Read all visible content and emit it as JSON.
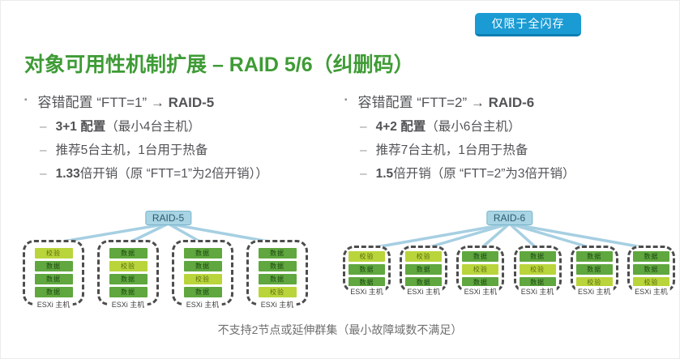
{
  "badge": {
    "label": "仅限于全闪存"
  },
  "title": "对象可用性机制扩展 – RAID 5/6（纠删码）",
  "bullets": {
    "bullet_char": "▪",
    "dash_char": "–",
    "columns": [
      {
        "heading": {
          "pre": "容错配置 “FTT=1” → ",
          "raid": "RAID-5"
        },
        "items": [
          {
            "bold": "3+1 配置",
            "rest": "（最小4台主机）"
          },
          {
            "bold": "",
            "rest": "推荐5台主机，1台用于热备"
          },
          {
            "bold": "1.33",
            "rest": "倍开销（原 “FTT=1”为2倍开销））"
          }
        ]
      },
      {
        "heading": {
          "pre": "容错配置 “FTT=2” → ",
          "raid": "RAID-6"
        },
        "items": [
          {
            "bold": "4+2 配置",
            "rest": "（最小6台主机）"
          },
          {
            "bold": "",
            "rest": "推荐7台主机，1台用于热备"
          },
          {
            "bold": "1.5",
            "rest": "倍开销（原 “FTT=2”为3倍开销）"
          }
        ]
      }
    ]
  },
  "diagrams": [
    {
      "label": "RAID-5",
      "host_label": "ESXi 主机",
      "hosts": [
        [
          "parity",
          "data",
          "data",
          "data"
        ],
        [
          "data",
          "parity",
          "data",
          "data"
        ],
        [
          "data",
          "data",
          "parity",
          "data"
        ],
        [
          "data",
          "data",
          "data",
          "parity"
        ]
      ]
    },
    {
      "label": "RAID-6",
      "host_label": "ESXi 主机",
      "hosts": [
        [
          "parity",
          "data",
          "data"
        ],
        [
          "parity",
          "data",
          "data"
        ],
        [
          "data",
          "parity",
          "data"
        ],
        [
          "data",
          "parity",
          "data"
        ],
        [
          "data",
          "data",
          "parity"
        ],
        [
          "data",
          "data",
          "parity"
        ]
      ]
    }
  ],
  "block_labels": {
    "data": "数据",
    "parity": "校验"
  },
  "footer": "不支持2节点或延伸群集（最小故障域数不满足）",
  "colors": {
    "title_green": "#3e9b35",
    "badge_blue": "#1b9bd3",
    "data_block_green": "#5fa73e",
    "parity_block_green": "#b9d53b",
    "raid_label_blue": "#a8d4e4",
    "connector_blue": "#a6cfe2",
    "text_gray": "#525356"
  }
}
